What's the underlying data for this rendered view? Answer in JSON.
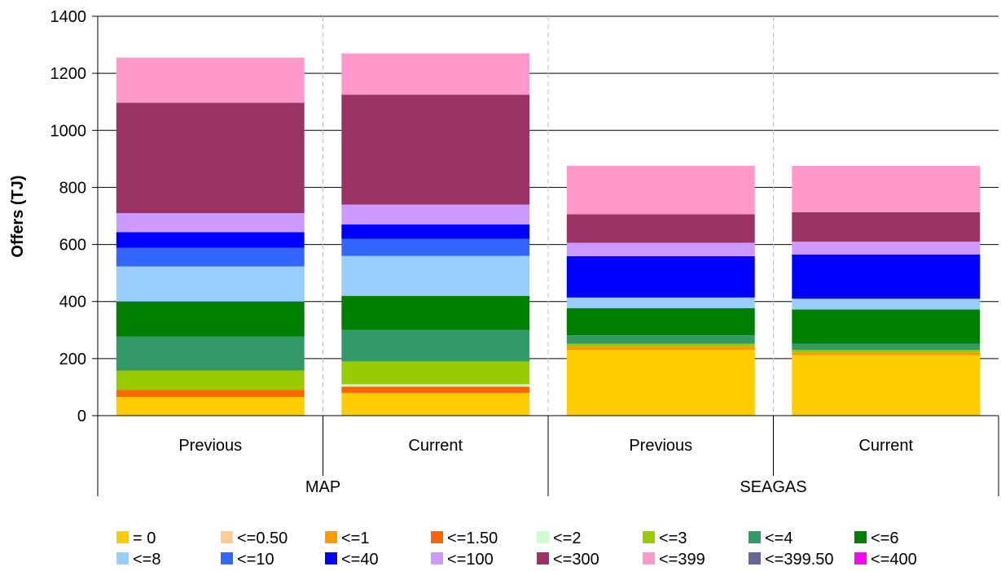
{
  "chart_data": {
    "type": "bar",
    "stacked": true,
    "title": "",
    "ylabel": "Offers (TJ)",
    "xlabel": "",
    "ylim": [
      0,
      1400
    ],
    "y_ticks": [
      0,
      200,
      400,
      600,
      800,
      1000,
      1200,
      1400
    ],
    "grid": "horizontal",
    "legend_position": "bottom",
    "groups": [
      {
        "name": "MAP",
        "categories": [
          "Previous",
          "Current"
        ]
      },
      {
        "name": "SEAGAS",
        "categories": [
          "Previous",
          "Current"
        ]
      }
    ],
    "categories": [
      "Previous",
      "Current",
      "Previous",
      "Current"
    ],
    "series": [
      {
        "name": "= 0",
        "color": "#FFCC00",
        "values": [
          65,
          80,
          230,
          212
        ]
      },
      {
        "name": "<=0.50",
        "color": "#FFCC99",
        "values": [
          0,
          0,
          0,
          0
        ]
      },
      {
        "name": "<=1",
        "color": "#FF9900",
        "values": [
          0,
          0,
          12,
          10
        ]
      },
      {
        "name": "<=1.50",
        "color": "#FF6600",
        "values": [
          25,
          22,
          0,
          0
        ]
      },
      {
        "name": "<=2",
        "color": "#CCFFCC",
        "values": [
          0,
          8,
          0,
          0
        ]
      },
      {
        "name": "<=3",
        "color": "#99CC00",
        "values": [
          68,
          80,
          10,
          8
        ]
      },
      {
        "name": "<=4",
        "color": "#339966",
        "values": [
          120,
          110,
          30,
          22
        ]
      },
      {
        "name": "<=6",
        "color": "#008000",
        "values": [
          122,
          120,
          95,
          120
        ]
      },
      {
        "name": "<=8",
        "color": "#99CCFF",
        "values": [
          123,
          140,
          37,
          38
        ]
      },
      {
        "name": "<=10",
        "color": "#3366FF",
        "values": [
          65,
          60,
          0,
          0
        ]
      },
      {
        "name": "<=40",
        "color": "#0000FF",
        "values": [
          55,
          50,
          145,
          155
        ]
      },
      {
        "name": "<=100",
        "color": "#CC99FF",
        "values": [
          67,
          70,
          47,
          45
        ]
      },
      {
        "name": "<=300",
        "color": "#993366",
        "values": [
          387,
          385,
          100,
          103
        ]
      },
      {
        "name": "<=399",
        "color": "#FF99CC",
        "values": [
          158,
          145,
          170,
          162
        ]
      },
      {
        "name": "<=399.50",
        "color": "#666699",
        "values": [
          0,
          0,
          0,
          0
        ]
      },
      {
        "name": "<=400",
        "color": "#FF00FF",
        "values": [
          0,
          0,
          0,
          0
        ]
      }
    ]
  }
}
